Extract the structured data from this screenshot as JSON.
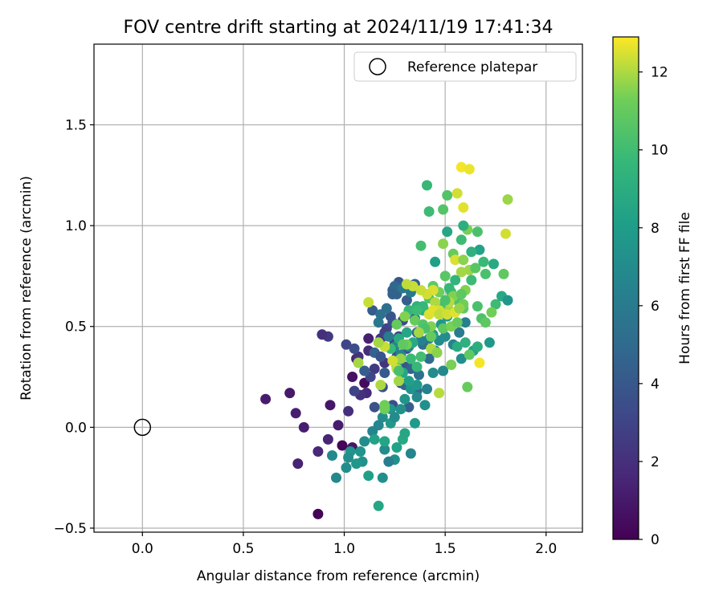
{
  "chart_data": {
    "type": "scatter",
    "title": "FOV centre drift starting at 2024/11/19 17:41:34",
    "xlabel": "Angular distance from reference (arcmin)",
    "ylabel": "Rotation from reference (arcmin)",
    "xlim": [
      -0.24,
      2.18
    ],
    "ylim": [
      -0.52,
      1.9
    ],
    "xticks": [
      0.0,
      0.5,
      1.0,
      1.5,
      2.0
    ],
    "xtick_labels": [
      "0.0",
      "0.5",
      "1.0",
      "1.5",
      "2.0"
    ],
    "yticks": [
      -0.5,
      0.0,
      0.5,
      1.0,
      1.5
    ],
    "ytick_labels": [
      "−0.5",
      "0.0",
      "0.5",
      "1.0",
      "1.5"
    ],
    "grid": true,
    "legend": {
      "position": "top-right",
      "label": "Reference platepar"
    },
    "reference_point": {
      "x": 0.0,
      "y": 0.0
    },
    "colorbar": {
      "label": "Hours from first FF file",
      "min": 0,
      "max": 12.9,
      "ticks": [
        0,
        2,
        4,
        6,
        8,
        10,
        12
      ],
      "tick_labels": [
        "0",
        "2",
        "4",
        "6",
        "8",
        "10",
        "12"
      ],
      "colormap": "viridis"
    },
    "points": [
      [
        0.87,
        -0.43,
        0.1
      ],
      [
        0.99,
        -0.09,
        0.2
      ],
      [
        1.1,
        0.22,
        0.4
      ],
      [
        0.93,
        0.11,
        0.9
      ],
      [
        1.04,
        -0.1,
        0.9
      ],
      [
        0.92,
        0.45,
        2.5
      ],
      [
        1.12,
        0.44,
        1.3
      ],
      [
        0.89,
        0.46,
        2.0
      ],
      [
        1.06,
        0.34,
        1.4
      ],
      [
        1.11,
        0.17,
        1.7
      ],
      [
        0.97,
        0.01,
        1.1
      ],
      [
        1.04,
        0.25,
        0.7
      ],
      [
        0.61,
        0.14,
        1.1
      ],
      [
        0.73,
        0.17,
        1.0
      ],
      [
        0.76,
        0.07,
        1.2
      ],
      [
        0.8,
        0.0,
        1.2
      ],
      [
        0.77,
        -0.18,
        1.4
      ],
      [
        0.87,
        -0.12,
        1.6
      ],
      [
        0.92,
        -0.06,
        1.5
      ],
      [
        1.02,
        0.08,
        1.9
      ],
      [
        1.08,
        0.16,
        2.1
      ],
      [
        1.15,
        0.29,
        2.5
      ],
      [
        1.07,
        0.35,
        2.1
      ],
      [
        1.12,
        0.38,
        1.8
      ],
      [
        1.18,
        0.44,
        2.4
      ],
      [
        1.2,
        0.32,
        2.2
      ],
      [
        1.25,
        0.42,
        2.7
      ],
      [
        1.21,
        0.49,
        3.1
      ],
      [
        1.24,
        0.52,
        3.4
      ],
      [
        1.29,
        0.53,
        3.3
      ],
      [
        1.23,
        0.55,
        3.8
      ],
      [
        1.2,
        0.47,
        2.9
      ],
      [
        1.14,
        0.58,
        4.2
      ],
      [
        1.27,
        0.45,
        3.0
      ],
      [
        1.31,
        0.39,
        3.2
      ],
      [
        1.28,
        0.22,
        2.9
      ],
      [
        1.19,
        0.2,
        3.6
      ],
      [
        1.15,
        0.1,
        3.7
      ],
      [
        1.05,
        0.18,
        3.0
      ],
      [
        1.01,
        0.41,
        3.1
      ],
      [
        1.05,
        0.39,
        3.5
      ],
      [
        1.13,
        0.25,
        3.2
      ],
      [
        1.1,
        0.28,
        4.3
      ],
      [
        1.15,
        0.37,
        4.6
      ],
      [
        1.18,
        0.35,
        3.8
      ],
      [
        1.2,
        0.27,
        4.1
      ],
      [
        1.26,
        0.35,
        3.6
      ],
      [
        1.3,
        0.3,
        3.9
      ],
      [
        1.24,
        0.11,
        3.4
      ],
      [
        1.32,
        0.1,
        4.4
      ],
      [
        1.36,
        0.18,
        4.9
      ],
      [
        1.3,
        0.21,
        4.8
      ],
      [
        1.33,
        0.29,
        4.6
      ],
      [
        1.37,
        0.26,
        5.4
      ],
      [
        1.42,
        0.34,
        5.1
      ],
      [
        1.39,
        0.41,
        5.2
      ],
      [
        1.36,
        0.47,
        5.1
      ],
      [
        1.35,
        0.54,
        4.6
      ],
      [
        1.31,
        0.63,
        4.3
      ],
      [
        1.26,
        0.66,
        4.5
      ],
      [
        1.27,
        0.72,
        4.0
      ],
      [
        1.24,
        0.68,
        4.3
      ],
      [
        1.25,
        0.7,
        4.9
      ],
      [
        1.29,
        0.69,
        5.8
      ],
      [
        1.35,
        0.71,
        4.3
      ],
      [
        1.33,
        0.67,
        5.8
      ],
      [
        1.24,
        0.66,
        4.6
      ],
      [
        1.21,
        0.59,
        5.3
      ],
      [
        1.17,
        0.52,
        5.8
      ],
      [
        1.18,
        0.56,
        5.4
      ],
      [
        1.22,
        0.45,
        6.0
      ],
      [
        1.25,
        0.4,
        6.6
      ],
      [
        1.28,
        0.36,
        6.4
      ],
      [
        1.32,
        0.4,
        6.9
      ],
      [
        1.38,
        0.43,
        6.4
      ],
      [
        1.42,
        0.44,
        6.1
      ],
      [
        1.45,
        0.38,
        6.2
      ],
      [
        1.47,
        0.43,
        6.9
      ],
      [
        1.5,
        0.45,
        7.0
      ],
      [
        1.54,
        0.41,
        6.5
      ],
      [
        1.57,
        0.47,
        6.0
      ],
      [
        1.6,
        0.52,
        6.4
      ],
      [
        1.58,
        0.34,
        7.2
      ],
      [
        1.49,
        0.28,
        6.8
      ],
      [
        1.44,
        0.27,
        7.0
      ],
      [
        1.41,
        0.19,
        6.4
      ],
      [
        1.36,
        0.15,
        6.9
      ],
      [
        1.3,
        0.14,
        7.5
      ],
      [
        1.28,
        0.09,
        7.3
      ],
      [
        1.23,
        0.09,
        7.5
      ],
      [
        1.19,
        0.05,
        7.1
      ],
      [
        1.17,
        0.01,
        6.7
      ],
      [
        1.14,
        -0.02,
        6.6
      ],
      [
        1.1,
        -0.07,
        7.0
      ],
      [
        1.09,
        -0.17,
        7.3
      ],
      [
        1.08,
        -0.12,
        7.5
      ],
      [
        1.03,
        -0.12,
        7.5
      ],
      [
        1.01,
        -0.2,
        7.1
      ],
      [
        0.96,
        -0.25,
        6.8
      ],
      [
        0.94,
        -0.14,
        6.8
      ],
      [
        1.02,
        -0.15,
        7.2
      ],
      [
        1.06,
        -0.18,
        7.6
      ],
      [
        1.12,
        -0.24,
        8.2
      ],
      [
        1.19,
        -0.25,
        7.2
      ],
      [
        1.25,
        -0.16,
        7.3
      ],
      [
        1.22,
        -0.17,
        6.2
      ],
      [
        1.2,
        -0.11,
        7.0
      ],
      [
        1.15,
        -0.06,
        8.3
      ],
      [
        1.26,
        -0.1,
        8.3
      ],
      [
        1.29,
        -0.06,
        8.7
      ],
      [
        1.33,
        -0.13,
        6.6
      ],
      [
        1.3,
        -0.03,
        8.6
      ],
      [
        1.2,
        -0.07,
        8.5
      ],
      [
        1.17,
        -0.39,
        8.6
      ],
      [
        1.23,
        0.02,
        7.8
      ],
      [
        1.25,
        0.05,
        7.0
      ],
      [
        1.35,
        0.02,
        7.9
      ],
      [
        1.4,
        0.11,
        7.2
      ],
      [
        1.33,
        0.19,
        7.5
      ],
      [
        1.36,
        0.21,
        7.8
      ],
      [
        1.32,
        0.23,
        8.2
      ],
      [
        1.29,
        0.27,
        8.6
      ],
      [
        1.26,
        0.3,
        9.1
      ],
      [
        1.23,
        0.39,
        9.8
      ],
      [
        1.27,
        0.44,
        8.8
      ],
      [
        1.31,
        0.47,
        8.6
      ],
      [
        1.34,
        0.42,
        8.7
      ],
      [
        1.32,
        0.58,
        9.7
      ],
      [
        1.36,
        0.6,
        9.3
      ],
      [
        1.39,
        0.58,
        9.1
      ],
      [
        1.42,
        0.57,
        8.5
      ],
      [
        1.44,
        0.46,
        8.1
      ],
      [
        1.48,
        0.51,
        7.6
      ],
      [
        1.51,
        0.55,
        7.9
      ],
      [
        1.56,
        0.4,
        8.9
      ],
      [
        1.6,
        0.42,
        9.2
      ],
      [
        1.64,
        0.38,
        8.3
      ],
      [
        1.66,
        0.4,
        9.0
      ],
      [
        1.72,
        0.42,
        7.8
      ],
      [
        1.68,
        0.54,
        10.4
      ],
      [
        1.75,
        0.61,
        9.9
      ],
      [
        1.78,
        0.65,
        8.7
      ],
      [
        1.81,
        0.63,
        7.6
      ],
      [
        1.73,
        0.57,
        11.3
      ],
      [
        1.7,
        0.52,
        10.8
      ],
      [
        1.66,
        0.6,
        10.3
      ],
      [
        1.59,
        0.59,
        10.8
      ],
      [
        1.56,
        0.63,
        10.4
      ],
      [
        1.53,
        0.67,
        10.1
      ],
      [
        1.5,
        0.75,
        10.7
      ],
      [
        1.44,
        0.7,
        10.9
      ],
      [
        1.42,
        0.64,
        10.4
      ],
      [
        1.39,
        0.6,
        9.7
      ],
      [
        1.36,
        0.58,
        9.9
      ],
      [
        1.45,
        0.82,
        8.2
      ],
      [
        1.38,
        0.9,
        10.1
      ],
      [
        1.49,
        0.91,
        11.6
      ],
      [
        1.54,
        0.86,
        11.1
      ],
      [
        1.55,
        0.83,
        12.5
      ],
      [
        1.59,
        0.83,
        11.6
      ],
      [
        1.62,
        0.78,
        11.8
      ],
      [
        1.65,
        0.79,
        10.7
      ],
      [
        1.69,
        0.82,
        9.8
      ],
      [
        1.7,
        0.76,
        10.3
      ],
      [
        1.74,
        0.81,
        8.8
      ],
      [
        1.67,
        0.88,
        8.3
      ],
      [
        1.63,
        0.87,
        9.2
      ],
      [
        1.58,
        0.93,
        9.9
      ],
      [
        1.61,
        0.98,
        11.4
      ],
      [
        1.59,
        1.0,
        9.1
      ],
      [
        1.66,
        0.97,
        10.3
      ],
      [
        1.8,
        0.96,
        12.4
      ],
      [
        1.79,
        0.76,
        10.9
      ],
      [
        1.51,
        0.97,
        8.6
      ],
      [
        1.49,
        1.08,
        10.6
      ],
      [
        1.42,
        1.07,
        9.9
      ],
      [
        1.41,
        1.2,
        9.7
      ],
      [
        1.51,
        1.15,
        10.5
      ],
      [
        1.56,
        1.16,
        12.4
      ],
      [
        1.59,
        1.09,
        12.6
      ],
      [
        1.58,
        1.29,
        12.8
      ],
      [
        1.62,
        1.28,
        12.7
      ],
      [
        1.81,
        1.13,
        11.8
      ],
      [
        1.58,
        0.77,
        11.9
      ],
      [
        1.55,
        0.73,
        9.5
      ],
      [
        1.52,
        0.69,
        9.7
      ],
      [
        1.47,
        0.67,
        11.3
      ],
      [
        1.49,
        0.6,
        10.1
      ],
      [
        1.52,
        0.58,
        11.9
      ],
      [
        1.54,
        0.65,
        11.5
      ],
      [
        1.59,
        0.61,
        11.3
      ],
      [
        1.6,
        0.68,
        11.5
      ],
      [
        1.58,
        0.66,
        10.8
      ],
      [
        1.52,
        0.62,
        12.1
      ],
      [
        1.45,
        0.62,
        12.0
      ],
      [
        1.42,
        0.56,
        12.5
      ],
      [
        1.47,
        0.58,
        12.4
      ],
      [
        1.44,
        0.68,
        12.5
      ],
      [
        1.41,
        0.66,
        12.4
      ],
      [
        1.38,
        0.68,
        12.3
      ],
      [
        1.34,
        0.7,
        12.3
      ],
      [
        1.31,
        0.71,
        12.2
      ],
      [
        1.26,
        0.51,
        11.0
      ],
      [
        1.3,
        0.55,
        11.5
      ],
      [
        1.35,
        0.53,
        11.1
      ],
      [
        1.39,
        0.51,
        10.6
      ],
      [
        1.43,
        0.5,
        11.5
      ],
      [
        1.49,
        0.49,
        10.8
      ],
      [
        1.53,
        0.5,
        11.4
      ],
      [
        1.56,
        0.52,
        11.1
      ],
      [
        1.43,
        0.45,
        11.0
      ],
      [
        1.4,
        0.49,
        10.3
      ],
      [
        1.37,
        0.47,
        11.9
      ],
      [
        1.31,
        0.41,
        11.3
      ],
      [
        1.28,
        0.34,
        11.7
      ],
      [
        1.26,
        0.29,
        12.2
      ],
      [
        1.24,
        0.33,
        12.4
      ],
      [
        1.2,
        0.4,
        12.3
      ],
      [
        1.17,
        0.42,
        11.9
      ],
      [
        1.18,
        0.21,
        12.0
      ],
      [
        1.2,
        0.11,
        11.2
      ],
      [
        1.2,
        0.09,
        11.3
      ],
      [
        1.07,
        0.32,
        11.9
      ],
      [
        1.12,
        0.62,
        12.3
      ],
      [
        1.27,
        0.23,
        11.9
      ],
      [
        1.29,
        0.41,
        10.9
      ],
      [
        1.33,
        0.34,
        9.8
      ],
      [
        1.38,
        0.35,
        10.1
      ],
      [
        1.36,
        0.3,
        9.7
      ],
      [
        1.43,
        0.39,
        12.0
      ],
      [
        1.46,
        0.37,
        11.6
      ],
      [
        1.53,
        0.31,
        11.4
      ],
      [
        1.62,
        0.36,
        10.9
      ],
      [
        1.61,
        0.2,
        11.1
      ],
      [
        1.47,
        0.17,
        12.1
      ],
      [
        1.67,
        0.32,
        12.8
      ],
      [
        1.44,
        0.58,
        12.6
      ],
      [
        1.47,
        0.56,
        12.2
      ],
      [
        1.51,
        0.56,
        12.4
      ],
      [
        1.55,
        0.57,
        12.6
      ],
      [
        1.57,
        0.59,
        11.7
      ],
      [
        1.5,
        0.63,
        10.3
      ],
      [
        1.63,
        0.73,
        9.9
      ],
      [
        1.27,
        0.28,
        10.2
      ]
    ]
  }
}
